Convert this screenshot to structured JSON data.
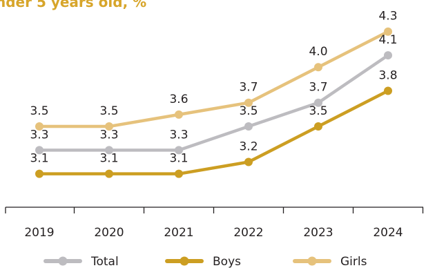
{
  "chart_data": {
    "type": "line",
    "title": "nder 5 years old, %",
    "categories": [
      "2019",
      "2020",
      "2021",
      "2022",
      "2023",
      "2024"
    ],
    "ylim": [
      2.9,
      4.45
    ],
    "grid": false,
    "legend_position": "bottom",
    "series": [
      {
        "name": "Total",
        "color": "#BDBCC0",
        "values": [
          3.3,
          3.3,
          3.3,
          3.5,
          3.7,
          4.1
        ],
        "labels": [
          "3.3",
          "3.3",
          "3.3",
          "3.5",
          "3.7",
          "4.1"
        ]
      },
      {
        "name": "Boys",
        "color": "#CC9E22",
        "values": [
          3.1,
          3.1,
          3.1,
          3.2,
          3.5,
          3.8
        ],
        "labels": [
          "3.1",
          "3.1",
          "3.1",
          "3.2",
          "3.5",
          "3.8"
        ]
      },
      {
        "name": "Girls",
        "color": "#E6C27C",
        "values": [
          3.5,
          3.5,
          3.6,
          3.7,
          4.0,
          4.3
        ],
        "labels": [
          "3.5",
          "3.5",
          "3.6",
          "3.7",
          "4.0",
          "4.3"
        ]
      }
    ]
  }
}
